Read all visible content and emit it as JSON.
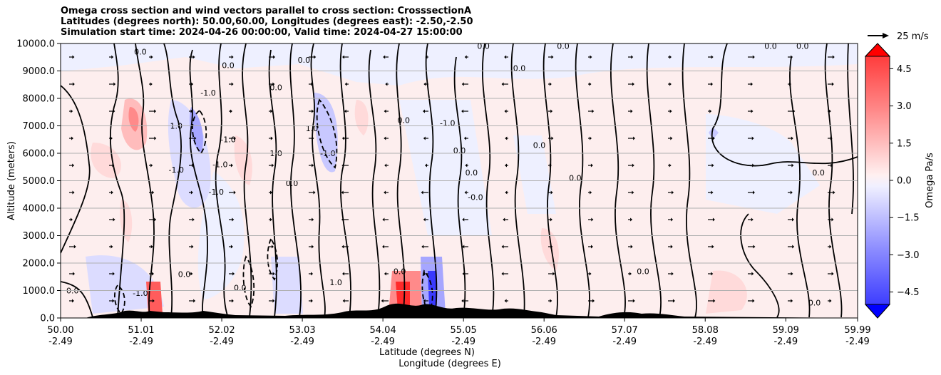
{
  "title": {
    "line1": "Omega cross section and wind vectors parallel to cross section: CrosssectionA",
    "line2": "Latitudes (degrees north): 50.00,60.00, Longitudes (degrees east): -2.50,-2.50",
    "line3": "Simulation start time: 2024-04-26 00:00:00, Valid time: 2024-04-27 15:00:00"
  },
  "chart_data": {
    "type": "heatmap",
    "subtype": "cross-section contour + quiver",
    "xlabel": "Latitude (degrees N)",
    "xlabel2": "Longitude (degrees E)",
    "ylabel": "Altitude (meters)",
    "ylim": [
      0,
      10000
    ],
    "yticks": [
      "0.0",
      "1000.0",
      "2000.0",
      "3000.0",
      "4000.0",
      "5000.0",
      "6000.0",
      "7000.0",
      "8000.0",
      "9000.0",
      "10000.0"
    ],
    "ytick_values": [
      0,
      1000,
      2000,
      3000,
      4000,
      5000,
      6000,
      7000,
      8000,
      9000,
      10000
    ],
    "xticks_lat": [
      "50.00",
      "51.01",
      "52.02",
      "53.03",
      "54.04",
      "55.05",
      "56.06",
      "57.07",
      "58.08",
      "59.09",
      "59.99"
    ],
    "xticks_lon": [
      "-2.49",
      "-2.49",
      "-2.49",
      "-2.49",
      "-2.49",
      "-2.49",
      "-2.49",
      "-2.49",
      "-2.49",
      "-2.49",
      "-2.49"
    ],
    "xtick_values": [
      50.0,
      51.01,
      52.02,
      53.03,
      54.04,
      55.05,
      56.06,
      57.07,
      58.08,
      59.09,
      59.99
    ],
    "xlim": [
      50.0,
      59.99
    ],
    "grid": "horizontal",
    "colorbar": {
      "label": "Omega Pa/s",
      "ticks": [
        "4.5",
        "3.0",
        "1.5",
        "0.0",
        "−1.5",
        "−3.0",
        "−4.5"
      ],
      "tick_values": [
        4.5,
        3.0,
        1.5,
        0.0,
        -1.5,
        -3.0,
        -4.5
      ],
      "range": [
        -5.0,
        5.0
      ],
      "extend": "both",
      "cmap": "bwr"
    },
    "quiver_key": {
      "label": "25 m/s",
      "value": 25
    },
    "contour_labels": [
      {
        "text": "0.0",
        "lat": 51.0,
        "z": 9600
      },
      {
        "text": "1.0",
        "lat": 51.45,
        "z": 6900
      },
      {
        "text": "-1.0",
        "lat": 51.45,
        "z": 5300
      },
      {
        "text": "-1.0",
        "lat": 52.0,
        "z": 5500
      },
      {
        "text": "-1.0",
        "lat": 51.95,
        "z": 4500
      },
      {
        "text": "-1.0",
        "lat": 52.1,
        "z": 6400
      },
      {
        "text": "-1.0",
        "lat": 51.85,
        "z": 8100
      },
      {
        "text": "0.0",
        "lat": 52.1,
        "z": 9100
      },
      {
        "text": "0.0",
        "lat": 52.7,
        "z": 8300
      },
      {
        "text": "1.0",
        "lat": 52.7,
        "z": 5900
      },
      {
        "text": "0.0",
        "lat": 52.9,
        "z": 4800
      },
      {
        "text": "1.0",
        "lat": 53.15,
        "z": 6800
      },
      {
        "text": "-1.0",
        "lat": 53.35,
        "z": 5900
      },
      {
        "text": "0.0",
        "lat": 53.05,
        "z": 9300
      },
      {
        "text": "0.0",
        "lat": 54.3,
        "z": 7100
      },
      {
        "text": "0.0",
        "lat": 55.0,
        "z": 6000
      },
      {
        "text": "0.0",
        "lat": 55.15,
        "z": 5200
      },
      {
        "text": "-0.0",
        "lat": 55.2,
        "z": 4300
      },
      {
        "text": "-1.0",
        "lat": 54.85,
        "z": 7000
      },
      {
        "text": "0.0",
        "lat": 55.3,
        "z": 9800
      },
      {
        "text": "0.0",
        "lat": 56.3,
        "z": 9800
      },
      {
        "text": "0.0",
        "lat": 55.75,
        "z": 9000
      },
      {
        "text": "0.0",
        "lat": 56.0,
        "z": 6200
      },
      {
        "text": "0.0",
        "lat": 56.45,
        "z": 5000
      },
      {
        "text": "0.0",
        "lat": 57.3,
        "z": 1600
      },
      {
        "text": "0.0",
        "lat": 54.25,
        "z": 1600
      },
      {
        "text": "1.0",
        "lat": 53.45,
        "z": 1200
      },
      {
        "text": "0.0",
        "lat": 52.25,
        "z": 1000
      },
      {
        "text": "0.0",
        "lat": 51.55,
        "z": 1500
      },
      {
        "text": "0.0",
        "lat": 58.9,
        "z": 9800
      },
      {
        "text": "0.0",
        "lat": 59.3,
        "z": 9800
      },
      {
        "text": "0.0",
        "lat": 59.45,
        "z": 450
      },
      {
        "text": "0.0",
        "lat": 50.15,
        "z": 900
      },
      {
        "text": "-1.0",
        "lat": 51.0,
        "z": 800
      },
      {
        "text": "0.0",
        "lat": 59.5,
        "z": 5200
      }
    ]
  }
}
